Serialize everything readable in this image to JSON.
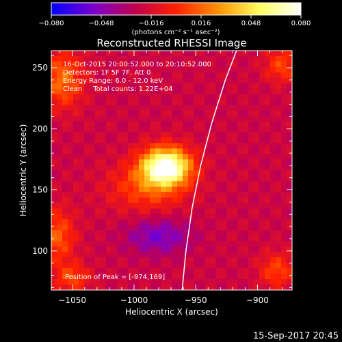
{
  "chart_data": {
    "type": "heatmap",
    "title": "Reconstructed RHESSI Image",
    "xlabel": "Heliocentric X (arcsec)",
    "ylabel": "Heliocentric Y (arcsec)",
    "xlim": [
      -1067,
      -872
    ],
    "ylim": [
      68,
      264
    ],
    "x_ticks": [
      -1050,
      -1000,
      -950,
      -900
    ],
    "y_ticks": [
      100,
      150,
      200,
      250
    ],
    "x_tick_labels": [
      "−1050",
      "−1000",
      "−950",
      "−900"
    ],
    "y_tick_labels": [
      "100",
      "150",
      "200",
      "250"
    ],
    "colorbar": {
      "range": [
        -0.08,
        0.08
      ],
      "ticks": [
        -0.08,
        -0.048,
        -0.016,
        0.016,
        0.048,
        0.08
      ],
      "tick_labels": [
        "−0.080",
        "−0.048",
        "−0.016",
        "0.016",
        "0.048",
        "0.080"
      ],
      "unit_label": "(photons cm⁻² s⁻¹ asec⁻²)",
      "colormap": [
        "#0000ff",
        "#7a00d0",
        "#c00050",
        "#ff2000",
        "#ff9000",
        "#ffff60",
        "#ffffff"
      ]
    },
    "annotations": [
      "16-Oct-2015 20:00:52.000 to 20:10:52.000",
      "Detectors: 1F 5F 7F, Att 0",
      "Energy Range: 6.0 - 12.0 keV",
      "Clean     Total counts: 1.22E+04"
    ],
    "peak_label": "Position of Peak = [-974,169]",
    "peak": [
      -974,
      169
    ],
    "limb_curve": [
      [
        -961,
        68
      ],
      [
        -958,
        100
      ],
      [
        -953,
        135
      ],
      [
        -946,
        170
      ],
      [
        -937,
        205
      ],
      [
        -926,
        240
      ],
      [
        -917,
        264
      ]
    ],
    "sources": [
      {
        "x": -974,
        "y": 169,
        "sx": 14,
        "sy": 11,
        "amp": 0.105
      },
      {
        "x": -990,
        "y": 152,
        "sx": 22,
        "sy": 14,
        "amp": 0.03
      },
      {
        "x": -1058,
        "y": 240,
        "sx": 12,
        "sy": 16,
        "amp": 0.04
      },
      {
        "x": -1062,
        "y": 112,
        "sx": 10,
        "sy": 16,
        "amp": 0.035
      },
      {
        "x": -1050,
        "y": 78,
        "sx": 10,
        "sy": 8,
        "amp": 0.03
      },
      {
        "x": -880,
        "y": 252,
        "sx": 10,
        "sy": 10,
        "amp": 0.03
      },
      {
        "x": -884,
        "y": 84,
        "sx": 10,
        "sy": 10,
        "amp": 0.03
      },
      {
        "x": -980,
        "y": 112,
        "sx": 18,
        "sy": 10,
        "amp": -0.03
      }
    ],
    "background": -0.022
  },
  "timestamp": "15-Sep-2017 20:45"
}
